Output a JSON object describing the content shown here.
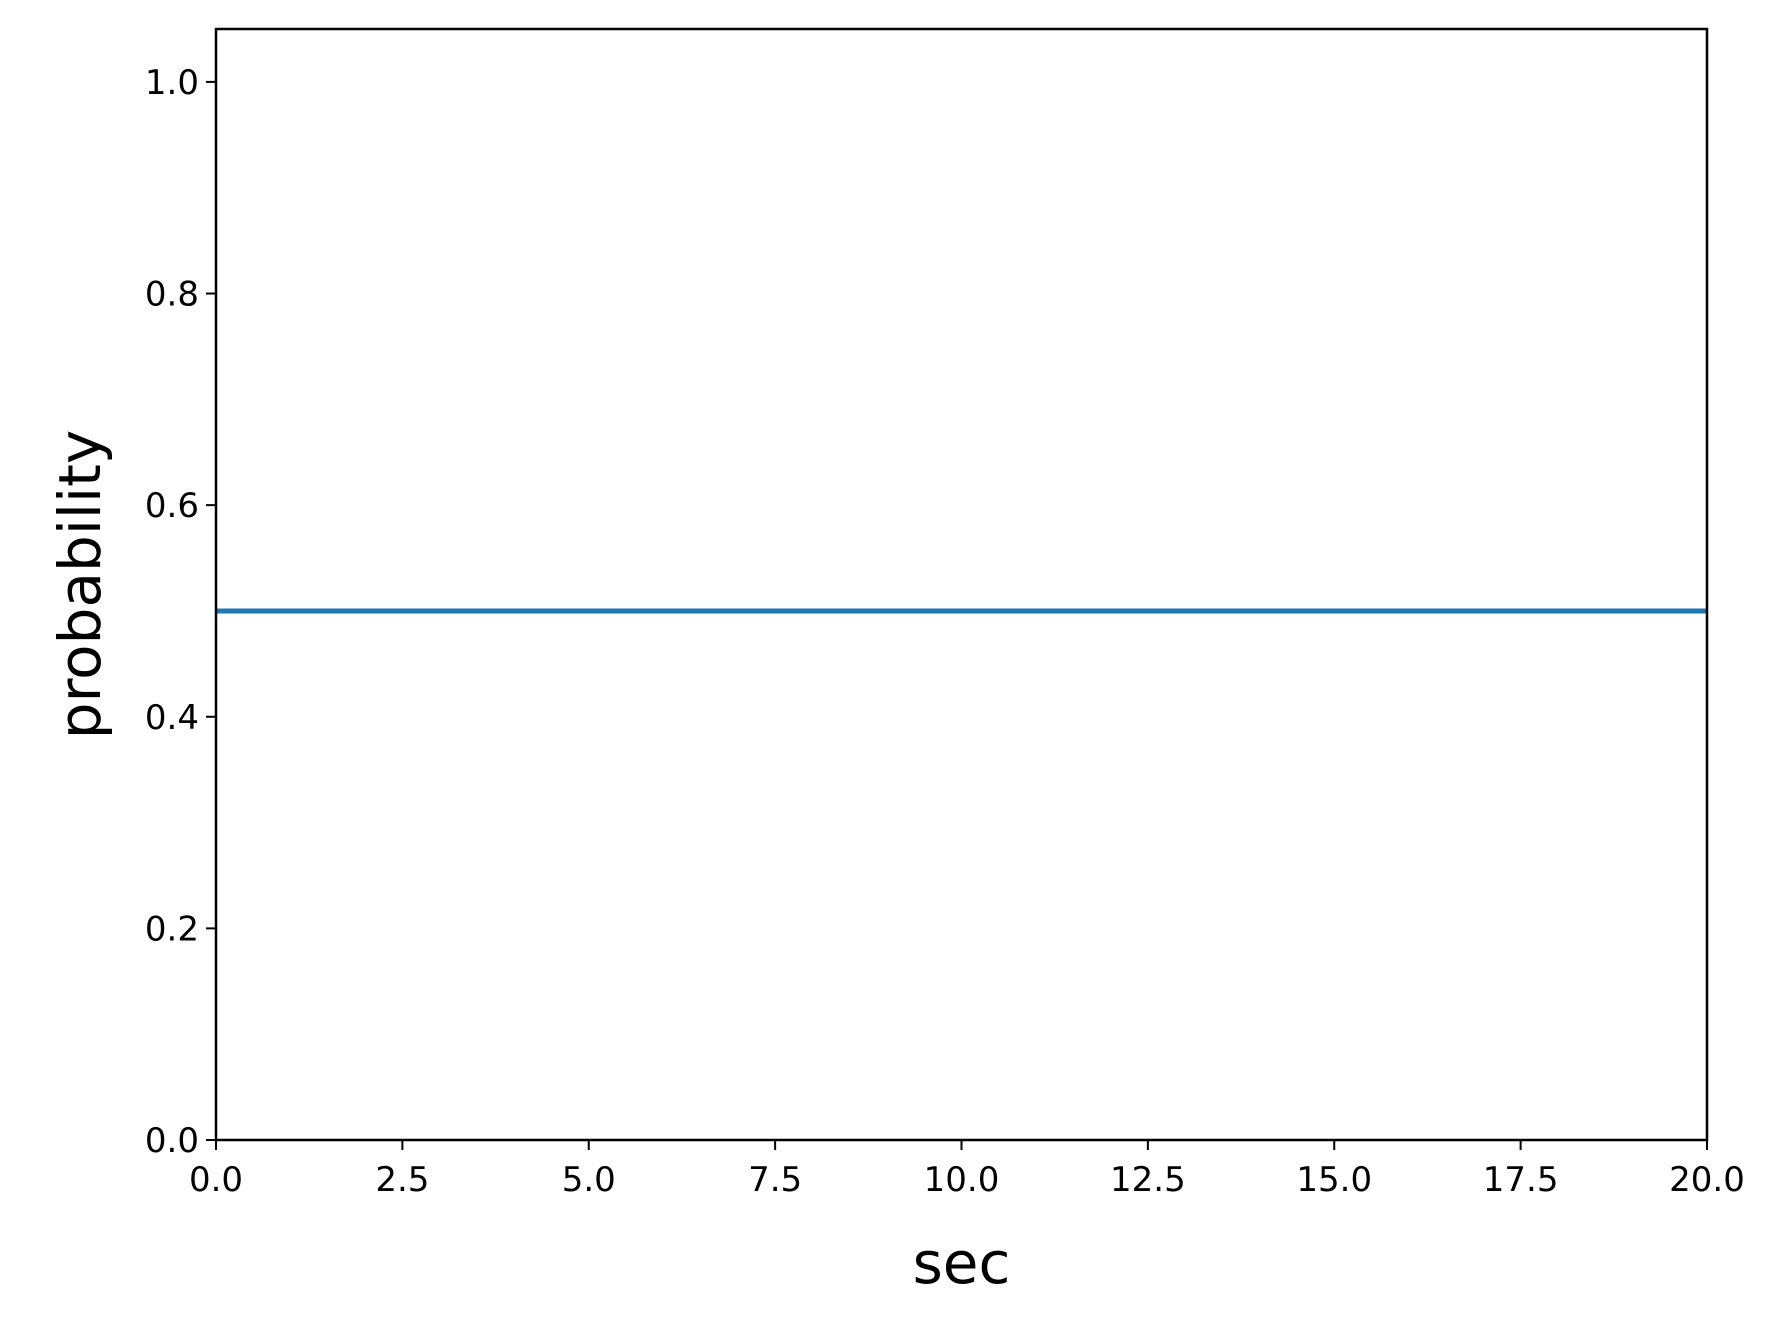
{
  "chart_data": {
    "type": "line",
    "title": "",
    "xlabel": "sec",
    "ylabel": "probability",
    "xlim": [
      0,
      20
    ],
    "ylim": [
      0,
      1.05
    ],
    "x_ticks": [
      0,
      2.5,
      5,
      7.5,
      10,
      12.5,
      15,
      17.5,
      20
    ],
    "x_tick_labels": [
      "0.0",
      "2.5",
      "5.0",
      "7.5",
      "10.0",
      "12.5",
      "15.0",
      "17.5",
      "20.0"
    ],
    "y_ticks": [
      0,
      0.2,
      0.4,
      0.6,
      0.8,
      1.0
    ],
    "y_tick_labels": [
      "0.0",
      "0.2",
      "0.4",
      "0.6",
      "0.8",
      "1.0"
    ],
    "grid": false,
    "legend": "none",
    "series": [
      {
        "color": "#1f77b4",
        "x": [
          0,
          20
        ],
        "y": [
          0.5,
          0.5
        ]
      }
    ]
  }
}
